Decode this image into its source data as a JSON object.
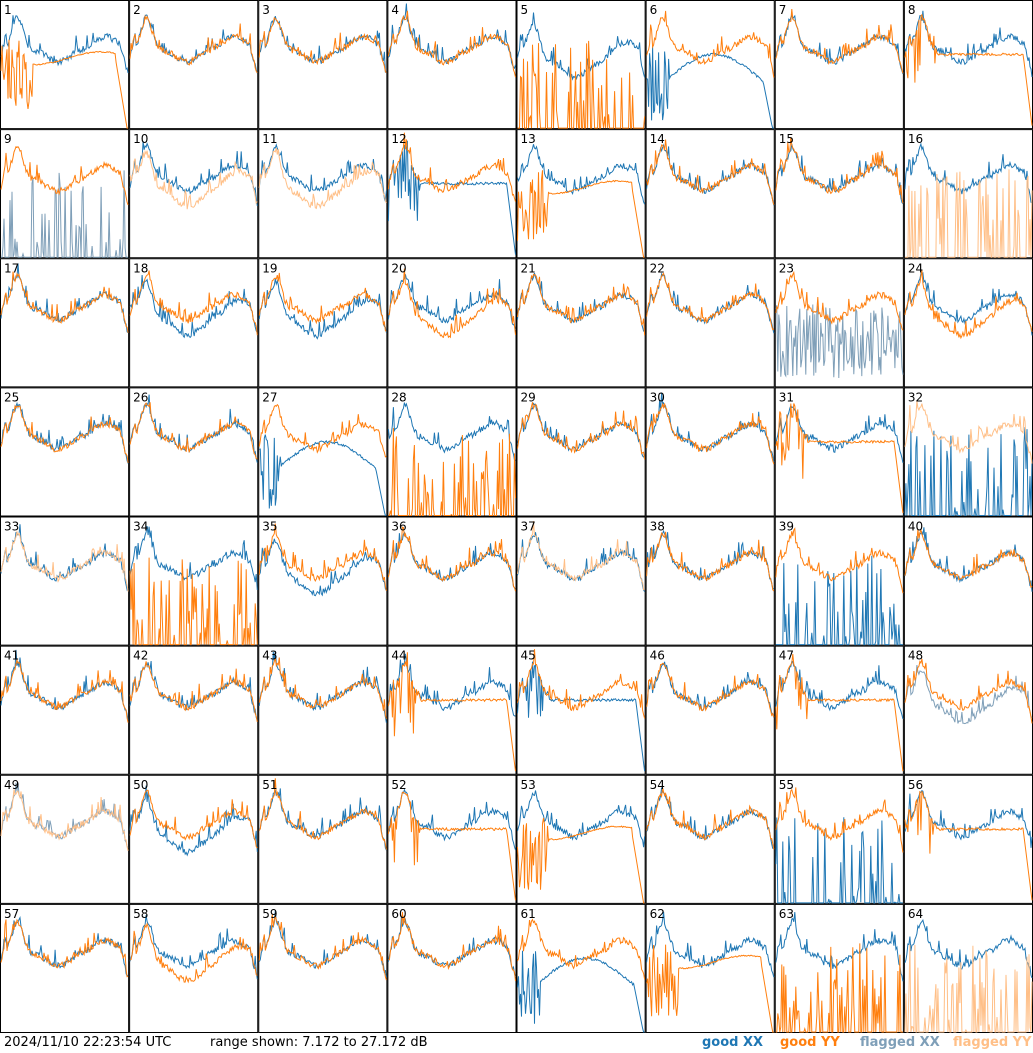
{
  "footer": {
    "timestamp": "2024/11/10 22:23:54 UTC",
    "range_text": "range shown: 7.172 to 27.172 dB",
    "legend": {
      "good_xx": "good XX",
      "good_yy": "good YY",
      "flagged_xx": "flagged XX",
      "flagged_yy": "flagged YY"
    }
  },
  "colors": {
    "good_xx": "#1f77b4",
    "good_yy": "#ff7f0e",
    "flagged_xx": "#7f9fb8",
    "flagged_yy": "#ffbf87",
    "border": "#000000"
  },
  "chart_data": {
    "type": "line",
    "grid": "8x8 small-multiples, one panel per antenna",
    "y_range_db": [
      7.172,
      27.172
    ],
    "panels": [
      {
        "label": "1",
        "xx": "good",
        "yy": "good",
        "profile": "yy_spiky_drop"
      },
      {
        "label": "2",
        "xx": "good",
        "yy": "good",
        "profile": "normal"
      },
      {
        "label": "3",
        "xx": "good",
        "yy": "good",
        "profile": "normal"
      },
      {
        "label": "4",
        "xx": "good",
        "yy": "good",
        "profile": "normal"
      },
      {
        "label": "5",
        "xx": "good",
        "yy": "good",
        "profile": "yy_absent_dip"
      },
      {
        "label": "6",
        "xx": "good",
        "yy": "good",
        "profile": "xx_low_hump"
      },
      {
        "label": "7",
        "xx": "good",
        "yy": "good",
        "profile": "normal"
      },
      {
        "label": "8",
        "xx": "good",
        "yy": "good",
        "profile": "yy_flat_drop"
      },
      {
        "label": "9",
        "xx": "flagged",
        "yy": "good",
        "profile": "xx_dead"
      },
      {
        "label": "10",
        "xx": "good",
        "yy": "flagged",
        "profile": "yy_lower"
      },
      {
        "label": "11",
        "xx": "good",
        "yy": "flagged",
        "profile": "yy_lower"
      },
      {
        "label": "12",
        "xx": "good",
        "yy": "good",
        "profile": "xx_drop"
      },
      {
        "label": "13",
        "xx": "good",
        "yy": "good",
        "profile": "yy_spiky_drop"
      },
      {
        "label": "14",
        "xx": "good",
        "yy": "good",
        "profile": "normal"
      },
      {
        "label": "15",
        "xx": "good",
        "yy": "good",
        "profile": "normal"
      },
      {
        "label": "16",
        "xx": "good",
        "yy": "flagged",
        "profile": "yy_absent"
      },
      {
        "label": "17",
        "xx": "good",
        "yy": "good",
        "profile": "normal"
      },
      {
        "label": "18",
        "xx": "good",
        "yy": "good",
        "profile": "xx_lower"
      },
      {
        "label": "19",
        "xx": "good",
        "yy": "good",
        "profile": "xx_lower"
      },
      {
        "label": "20",
        "xx": "good",
        "yy": "good",
        "profile": "yy_lower"
      },
      {
        "label": "21",
        "xx": "good",
        "yy": "good",
        "profile": "normal"
      },
      {
        "label": "22",
        "xx": "good",
        "yy": "good",
        "profile": "normal"
      },
      {
        "label": "23",
        "xx": "flagged",
        "yy": "good",
        "profile": "xx_noisy"
      },
      {
        "label": "24",
        "xx": "good",
        "yy": "good",
        "profile": "yy_lower"
      },
      {
        "label": "25",
        "xx": "good",
        "yy": "good",
        "profile": "normal"
      },
      {
        "label": "26",
        "xx": "good",
        "yy": "good",
        "profile": "normal"
      },
      {
        "label": "27",
        "xx": "good",
        "yy": "good",
        "profile": "xx_low_hump"
      },
      {
        "label": "28",
        "xx": "good",
        "yy": "good",
        "profile": "yy_dead"
      },
      {
        "label": "29",
        "xx": "good",
        "yy": "good",
        "profile": "normal"
      },
      {
        "label": "30",
        "xx": "good",
        "yy": "good",
        "profile": "normal"
      },
      {
        "label": "31",
        "xx": "good",
        "yy": "good",
        "profile": "yy_lower_drop"
      },
      {
        "label": "32",
        "xx": "good",
        "yy": "flagged",
        "profile": "xx_absent"
      },
      {
        "label": "33",
        "xx": "good",
        "yy": "flagged",
        "profile": "normal"
      },
      {
        "label": "34",
        "xx": "good",
        "yy": "good",
        "profile": "yy_dead"
      },
      {
        "label": "35",
        "xx": "good",
        "yy": "good",
        "profile": "xx_lower"
      },
      {
        "label": "36",
        "xx": "good",
        "yy": "good",
        "profile": "normal"
      },
      {
        "label": "37",
        "xx": "good",
        "yy": "flagged",
        "profile": "normal"
      },
      {
        "label": "38",
        "xx": "good",
        "yy": "good",
        "profile": "normal"
      },
      {
        "label": "39",
        "xx": "good",
        "yy": "good",
        "profile": "xx_absent"
      },
      {
        "label": "40",
        "xx": "good",
        "yy": "good",
        "profile": "normal"
      },
      {
        "label": "41",
        "xx": "good",
        "yy": "good",
        "profile": "normal"
      },
      {
        "label": "42",
        "xx": "good",
        "yy": "good",
        "profile": "normal"
      },
      {
        "label": "43",
        "xx": "good",
        "yy": "good",
        "profile": "normal"
      },
      {
        "label": "44",
        "xx": "good",
        "yy": "good",
        "profile": "yy_flat_drop"
      },
      {
        "label": "45",
        "xx": "good",
        "yy": "good",
        "profile": "xx_drop"
      },
      {
        "label": "46",
        "xx": "good",
        "yy": "good",
        "profile": "normal"
      },
      {
        "label": "47",
        "xx": "good",
        "yy": "good",
        "profile": "yy_flat_drop"
      },
      {
        "label": "48",
        "xx": "flagged",
        "yy": "good",
        "profile": "xx_lower"
      },
      {
        "label": "49",
        "xx": "flagged",
        "yy": "flagged",
        "profile": "normal"
      },
      {
        "label": "50",
        "xx": "good",
        "yy": "good",
        "profile": "xx_lower"
      },
      {
        "label": "51",
        "xx": "good",
        "yy": "good",
        "profile": "normal"
      },
      {
        "label": "52",
        "xx": "good",
        "yy": "good",
        "profile": "yy_flat_drop"
      },
      {
        "label": "53",
        "xx": "good",
        "yy": "good",
        "profile": "yy_spiky_drop"
      },
      {
        "label": "54",
        "xx": "good",
        "yy": "good",
        "profile": "normal"
      },
      {
        "label": "55",
        "xx": "good",
        "yy": "good",
        "profile": "xx_dead"
      },
      {
        "label": "56",
        "xx": "good",
        "yy": "good",
        "profile": "yy_flat_drop"
      },
      {
        "label": "57",
        "xx": "good",
        "yy": "good",
        "profile": "normal"
      },
      {
        "label": "58",
        "xx": "good",
        "yy": "good",
        "profile": "yy_lower"
      },
      {
        "label": "59",
        "xx": "good",
        "yy": "good",
        "profile": "normal"
      },
      {
        "label": "60",
        "xx": "good",
        "yy": "good",
        "profile": "normal"
      },
      {
        "label": "61",
        "xx": "good",
        "yy": "good",
        "profile": "xx_low_hump"
      },
      {
        "label": "62",
        "xx": "good",
        "yy": "good",
        "profile": "yy_spiky_drop"
      },
      {
        "label": "63",
        "xx": "good",
        "yy": "good",
        "profile": "yy_dead"
      },
      {
        "label": "64",
        "xx": "good",
        "yy": "flagged",
        "profile": "yy_absent"
      }
    ]
  }
}
